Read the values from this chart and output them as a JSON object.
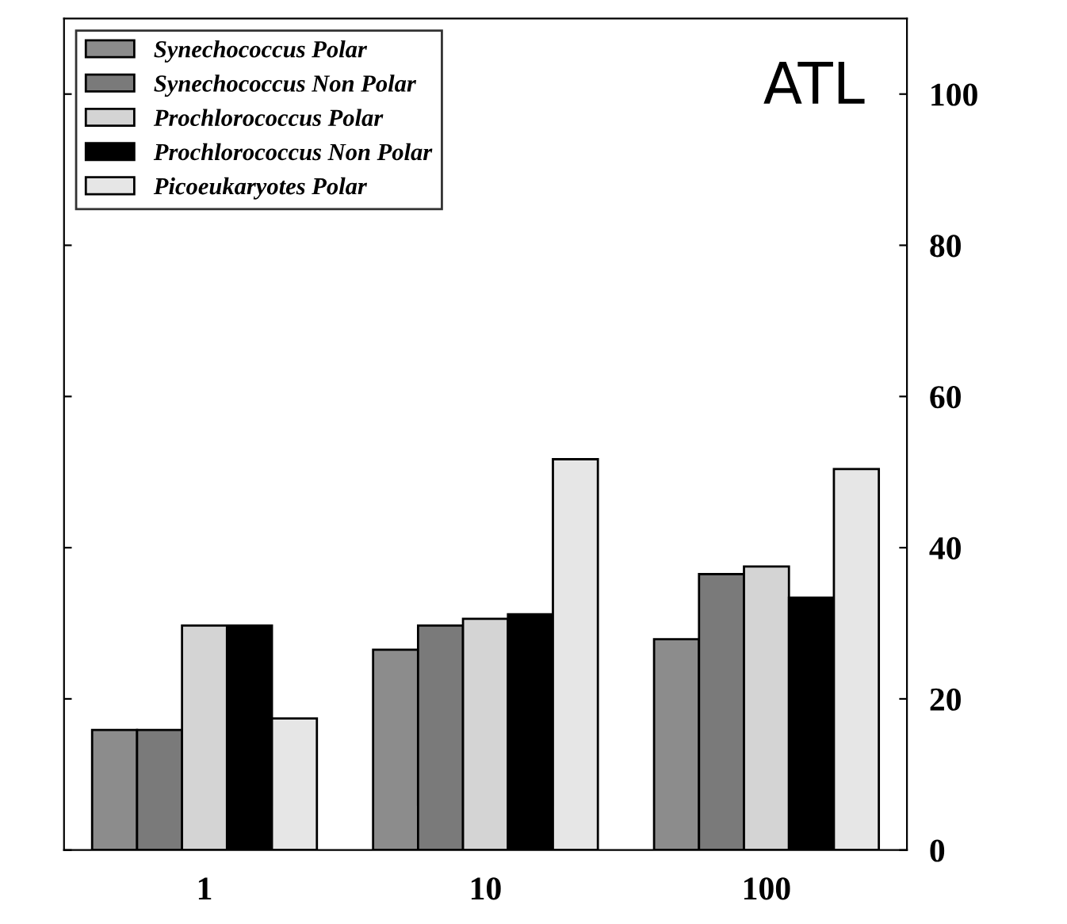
{
  "chart_data": {
    "type": "bar",
    "categories": [
      "1",
      "10",
      "100"
    ],
    "series": [
      {
        "name": "Synechococcus Polar",
        "color": "#8c8c8c",
        "values": [
          15.9,
          26.5,
          27.9
        ]
      },
      {
        "name": "Synechococcus Non Polar",
        "color": "#7a7a7a",
        "values": [
          15.9,
          29.7,
          36.5
        ]
      },
      {
        "name": "Prochlorococcus Polar",
        "color": "#d4d4d4",
        "values": [
          29.7,
          30.6,
          37.5
        ]
      },
      {
        "name": "Prochlorococcus Non Polar",
        "color": "#000000",
        "values": [
          29.7,
          31.2,
          33.4
        ]
      },
      {
        "name": "Picoeukaryotes Polar",
        "color": "#e6e6e6",
        "values": [
          17.4,
          51.7,
          50.4
        ]
      }
    ],
    "ylim": [
      0,
      110
    ],
    "yticks": [
      0,
      20,
      40,
      60,
      80,
      100
    ],
    "annotations": [
      "ATL"
    ],
    "legend": "top left",
    "grid": false
  }
}
